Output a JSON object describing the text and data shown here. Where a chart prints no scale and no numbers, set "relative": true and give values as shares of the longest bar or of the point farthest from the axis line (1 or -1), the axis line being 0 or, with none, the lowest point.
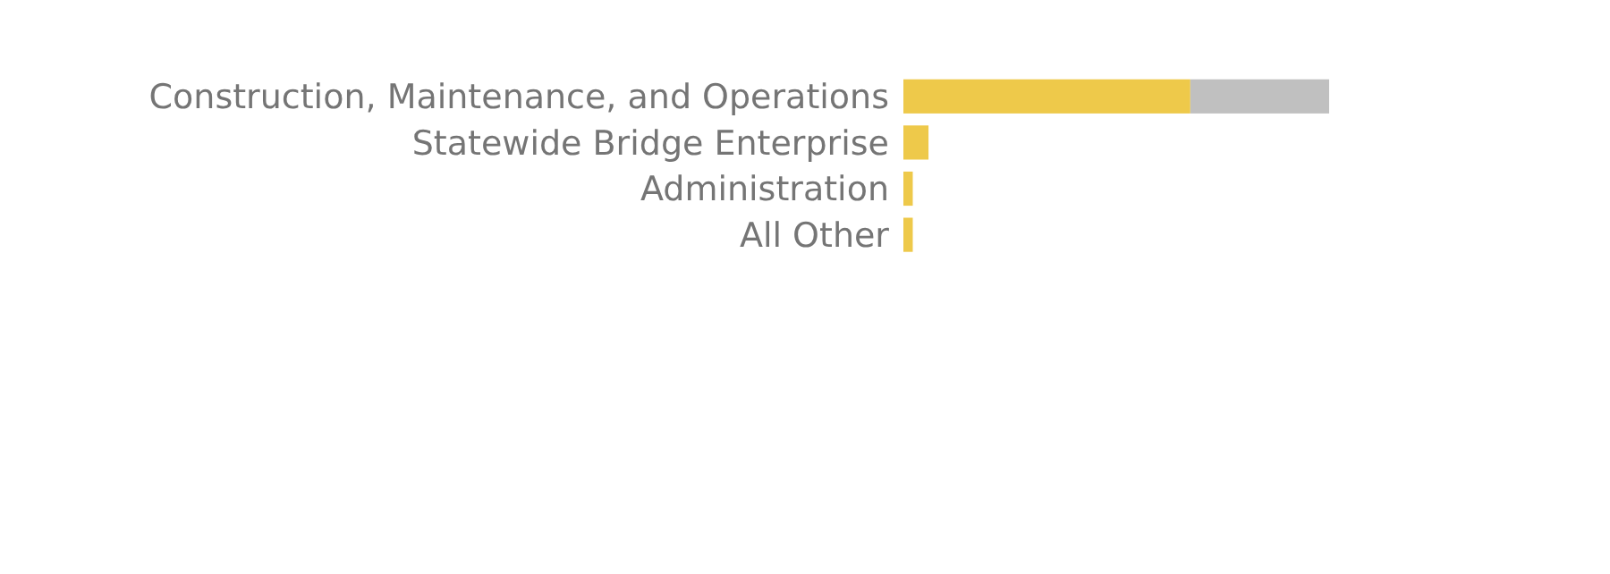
{
  "chart_data": {
    "type": "bar",
    "orientation": "horizontal",
    "stacked": true,
    "relative": true,
    "categories": [
      "Construction, Maintenance, and Operations",
      "Statewide Bridge Enterprise",
      "Administration",
      "All Other"
    ],
    "series": [
      {
        "color": "#eec94a",
        "values": [
          0.674,
          0.059,
          0.022,
          0.022
        ]
      },
      {
        "color": "#c0c0c0",
        "values": [
          0.326,
          null,
          null,
          null
        ]
      }
    ]
  }
}
